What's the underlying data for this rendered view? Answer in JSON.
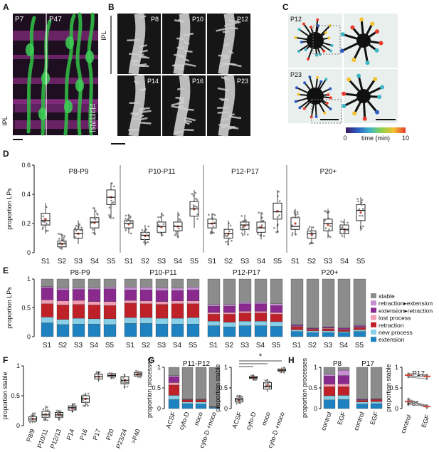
{
  "panel_letters": [
    "A",
    "B",
    "C",
    "D",
    "E",
    "F",
    "G",
    "H"
  ],
  "panelA": {
    "ages": [
      "P7",
      "P47"
    ],
    "ipl_label": "IPL",
    "strata": [
      "S1",
      "S2",
      "S3",
      "S4",
      "S5"
    ],
    "colors": {
      "bg": "#1b0d1c",
      "magenta": "#b43cb4",
      "green": "#33c24a"
    }
  },
  "panelB": {
    "ipl_label": "IPL",
    "ages": [
      "P8",
      "P10",
      "P12",
      "P14",
      "P16",
      "P23"
    ]
  },
  "panelC": {
    "ages": [
      "P12",
      "P23"
    ],
    "colorbar": {
      "min": "0",
      "max": "10",
      "label": "time (min)"
    }
  },
  "chart_data": [
    {
      "panel": "D",
      "type": "box",
      "ylabel": "proportion LPs",
      "yticks": [
        "0",
        "0.2",
        "0.4",
        "0.6"
      ],
      "ylim": [
        0,
        0.6
      ],
      "groups": [
        "P8-P9",
        "P10-P11",
        "P12-P17",
        "P20+"
      ],
      "categories": [
        "S1",
        "S2",
        "S3",
        "S4",
        "S5"
      ],
      "boxes": [
        [
          [
            0.13,
            0.19,
            0.22,
            0.27,
            0.34
          ],
          [
            0.02,
            0.04,
            0.06,
            0.08,
            0.13
          ],
          [
            0.06,
            0.1,
            0.13,
            0.16,
            0.22
          ],
          [
            0.12,
            0.17,
            0.21,
            0.24,
            0.31
          ],
          [
            0.23,
            0.33,
            0.38,
            0.43,
            0.48
          ]
        ],
        [
          [
            0.13,
            0.17,
            0.2,
            0.22,
            0.26
          ],
          [
            0.05,
            0.09,
            0.12,
            0.14,
            0.19
          ],
          [
            0.11,
            0.14,
            0.18,
            0.21,
            0.27
          ],
          [
            0.1,
            0.15,
            0.18,
            0.21,
            0.28
          ],
          [
            0.17,
            0.25,
            0.3,
            0.35,
            0.43
          ]
        ],
        [
          [
            0.13,
            0.17,
            0.2,
            0.23,
            0.27
          ],
          [
            0.05,
            0.1,
            0.13,
            0.16,
            0.22
          ],
          [
            0.12,
            0.16,
            0.19,
            0.21,
            0.26
          ],
          [
            0.09,
            0.14,
            0.17,
            0.21,
            0.28
          ],
          [
            0.14,
            0.23,
            0.28,
            0.34,
            0.43
          ]
        ],
        [
          [
            0.12,
            0.16,
            0.18,
            0.24,
            0.3
          ],
          [
            0.06,
            0.1,
            0.13,
            0.15,
            0.18
          ],
          [
            0.1,
            0.15,
            0.2,
            0.23,
            0.3
          ],
          [
            0.1,
            0.13,
            0.16,
            0.19,
            0.23
          ],
          [
            0.15,
            0.22,
            0.29,
            0.33,
            0.38
          ]
        ]
      ]
    },
    {
      "panel": "E",
      "type": "stacked-bar",
      "ylabel": "proportion LPs",
      "yticks": [
        "0",
        "0.5",
        "1"
      ],
      "ylim": [
        0,
        1
      ],
      "groups": [
        "P8-P9",
        "P10-P11",
        "P12-P17",
        "P20+"
      ],
      "categories": [
        "S1",
        "S2",
        "S3",
        "S4",
        "S5"
      ],
      "series_names": [
        "extension",
        "new process",
        "retraction",
        "lost process",
        "extension▸retraction",
        "retraction▸extension",
        "stable"
      ],
      "colors": [
        "#1f82c0",
        "#88cfe8",
        "#bf2128",
        "#f29db4",
        "#8a2a8f",
        "#c68fd4",
        "#8c8c8c"
      ],
      "stacks": [
        [
          [
            0.24,
            0.1,
            0.23,
            0.07,
            0.21,
            0.02,
            0.13
          ],
          [
            0.21,
            0.09,
            0.25,
            0.07,
            0.19,
            0.03,
            0.16
          ],
          [
            0.22,
            0.1,
            0.24,
            0.07,
            0.19,
            0.03,
            0.15
          ],
          [
            0.22,
            0.09,
            0.24,
            0.06,
            0.21,
            0.03,
            0.15
          ],
          [
            0.21,
            0.1,
            0.23,
            0.07,
            0.22,
            0.03,
            0.14
          ]
        ],
        [
          [
            0.23,
            0.1,
            0.25,
            0.05,
            0.18,
            0.05,
            0.14
          ],
          [
            0.23,
            0.1,
            0.24,
            0.05,
            0.19,
            0.05,
            0.14
          ],
          [
            0.22,
            0.1,
            0.24,
            0.05,
            0.19,
            0.05,
            0.15
          ],
          [
            0.22,
            0.1,
            0.25,
            0.05,
            0.18,
            0.05,
            0.15
          ],
          [
            0.22,
            0.11,
            0.24,
            0.05,
            0.19,
            0.05,
            0.14
          ]
        ],
        [
          [
            0.19,
            0.08,
            0.12,
            0.03,
            0.11,
            0.03,
            0.44
          ],
          [
            0.17,
            0.08,
            0.14,
            0.03,
            0.11,
            0.03,
            0.44
          ],
          [
            0.19,
            0.08,
            0.14,
            0.03,
            0.13,
            0.03,
            0.4
          ],
          [
            0.19,
            0.08,
            0.14,
            0.03,
            0.13,
            0.03,
            0.4
          ],
          [
            0.18,
            0.08,
            0.13,
            0.03,
            0.12,
            0.03,
            0.43
          ]
        ],
        [
          [
            0.09,
            0.03,
            0.05,
            0.01,
            0.02,
            0.01,
            0.79
          ],
          [
            0.07,
            0.03,
            0.03,
            0.01,
            0.01,
            0.0,
            0.85
          ],
          [
            0.07,
            0.03,
            0.04,
            0.01,
            0.02,
            0.0,
            0.83
          ],
          [
            0.07,
            0.02,
            0.03,
            0.01,
            0.02,
            0.0,
            0.85
          ],
          [
            0.09,
            0.03,
            0.04,
            0.01,
            0.02,
            0.01,
            0.8
          ]
        ]
      ]
    },
    {
      "panel": "F",
      "type": "box",
      "ylabel": "proportion stable",
      "yticks": [
        "0",
        "0.5",
        "1"
      ],
      "ylim": [
        0,
        1
      ],
      "categories": [
        "P8/9",
        "P10/11",
        "P12/13",
        "P14",
        "P16",
        "P17",
        "P20",
        "P23/24",
        ">P40"
      ],
      "boxes": [
        [
          0.04,
          0.08,
          0.11,
          0.15,
          0.22
        ],
        [
          0.09,
          0.14,
          0.18,
          0.24,
          0.34
        ],
        [
          0.1,
          0.14,
          0.18,
          0.22,
          0.26
        ],
        [
          0.22,
          0.26,
          0.3,
          0.33,
          0.37
        ],
        [
          0.32,
          0.39,
          0.45,
          0.5,
          0.55
        ],
        [
          0.74,
          0.78,
          0.82,
          0.86,
          0.9
        ],
        [
          0.79,
          0.82,
          0.84,
          0.87,
          0.89
        ],
        [
          0.62,
          0.7,
          0.76,
          0.82,
          0.86
        ],
        [
          0.8,
          0.83,
          0.86,
          0.89,
          0.92
        ]
      ]
    },
    {
      "panel": "G",
      "type": "stacked-bar",
      "title": "P11-P12",
      "ylabel": "proportion processes",
      "yticks": [
        "0",
        "0.5",
        "1"
      ],
      "ylim": [
        0,
        1
      ],
      "categories": [
        "ACSF",
        "cyto-D",
        "noco",
        "cyto-D +noco"
      ],
      "stacks": [
        [
          0.22,
          0.1,
          0.25,
          0.06,
          0.14,
          0.03,
          0.2
        ],
        [
          0.12,
          0.04,
          0.05,
          0.01,
          0.01,
          0.0,
          0.77
        ],
        [
          0.11,
          0.05,
          0.05,
          0.01,
          0.01,
          0.0,
          0.77
        ],
        [
          0.03,
          0.01,
          0.01,
          0.0,
          0.0,
          0.0,
          0.95
        ]
      ]
    },
    {
      "panel": "G2",
      "type": "box",
      "ylabel": "proportion stable",
      "yticks": [
        "0",
        "0.5",
        "1"
      ],
      "ylim": [
        0,
        1
      ],
      "categories": [
        "ACSF",
        "cyto-D",
        "noco",
        "cyto-D +noco"
      ],
      "significance": "*",
      "boxes": [
        [
          0.12,
          0.16,
          0.21,
          0.25,
          0.33
        ],
        [
          0.68,
          0.73,
          0.75,
          0.78,
          0.82
        ],
        [
          0.4,
          0.47,
          0.53,
          0.63,
          0.72
        ],
        [
          0.87,
          0.91,
          0.93,
          0.96,
          1.0
        ]
      ]
    },
    {
      "panel": "H",
      "type": "stacked-bar",
      "ylabel": "proportion processes",
      "yticks": [
        "0",
        "0.5",
        "1"
      ],
      "ylim": [
        0,
        1
      ],
      "groups": [
        "P8",
        "P17"
      ],
      "categories": [
        "control",
        "EGF",
        "control",
        "EGF"
      ],
      "stacks": [
        [
          0.21,
          0.1,
          0.22,
          0.06,
          0.2,
          0.04,
          0.17
        ],
        [
          0.22,
          0.1,
          0.21,
          0.07,
          0.2,
          0.13,
          0.07
        ],
        [
          0.11,
          0.05,
          0.04,
          0.01,
          0.02,
          0.0,
          0.77
        ],
        [
          0.12,
          0.05,
          0.05,
          0.01,
          0.01,
          0.0,
          0.76
        ]
      ]
    },
    {
      "panel": "H2",
      "type": "paired",
      "ylabel": "proportion stable",
      "yticks": [
        "0",
        "0.5",
        "1"
      ],
      "ylim": [
        0,
        1
      ],
      "categories": [
        "control",
        "EGF"
      ],
      "group_labels": [
        "P17",
        "P8"
      ],
      "significance": "*",
      "pairs_p17": [
        [
          0.84,
          0.82
        ],
        [
          0.8,
          0.77
        ],
        [
          0.78,
          0.77
        ],
        [
          0.76,
          0.72
        ],
        [
          0.85,
          0.8
        ]
      ],
      "pairs_p8": [
        [
          0.21,
          0.06
        ],
        [
          0.17,
          0.04
        ],
        [
          0.14,
          0.06
        ],
        [
          0.1,
          0.05
        ],
        [
          0.24,
          0.02
        ],
        [
          0.19,
          0.08
        ]
      ],
      "means": {
        "p17": [
          0.81,
          0.78
        ],
        "p8": [
          0.17,
          0.05
        ]
      }
    }
  ]
}
